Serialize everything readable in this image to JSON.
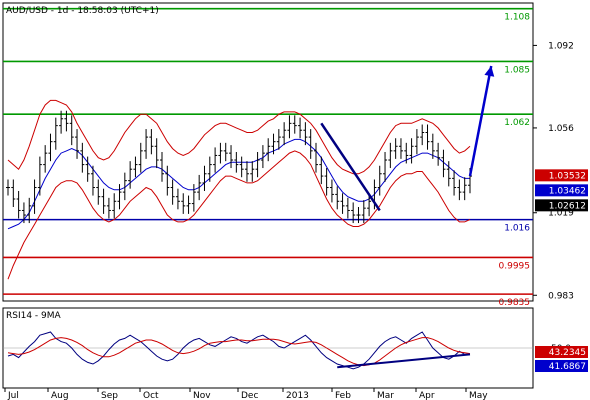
{
  "chart_data": [
    {
      "type": "line",
      "title": "AUD/USD - 1d - 18:58:03 (UTC+1)",
      "x_labels": [
        "Jul",
        "Aug",
        "Sep",
        "Oct",
        "Nov",
        "Dec",
        "2013",
        "Feb",
        "Mar",
        "Apr",
        "May"
      ],
      "y_ticks": [
        "1.092",
        "1.056",
        "1.019",
        "0.983"
      ],
      "ylim": [
        0.9805,
        1.1105
      ],
      "grid": false,
      "horizontal_levels": [
        {
          "label": "1.108",
          "value": 1.108,
          "color": "#009900"
        },
        {
          "label": "1.085",
          "value": 1.085,
          "color": "#009900"
        },
        {
          "label": "1.062",
          "value": 1.062,
          "color": "#009900"
        },
        {
          "label": "1.016",
          "value": 1.016,
          "color": "#0000aa"
        },
        {
          "label": "0.9995",
          "value": 0.9995,
          "color": "#cc0000"
        },
        {
          "label": "0.9835",
          "value": 0.9835,
          "color": "#cc0000"
        }
      ],
      "price_badges": [
        {
          "label": "1.03532",
          "value": 1.03532,
          "color": "#cc0000"
        },
        {
          "label": "1.03462",
          "value": 1.03462,
          "color": "#0000cc"
        },
        {
          "label": "1.02612",
          "value": 1.02612,
          "color": "#000000"
        }
      ],
      "close_series": {
        "name": "AUD/USD",
        "color": "#000000",
        "values": [
          1.03,
          1.025,
          1.02,
          1.018,
          1.022,
          1.03,
          1.04,
          1.045,
          1.05,
          1.057,
          1.06,
          1.058,
          1.052,
          1.046,
          1.04,
          1.036,
          1.03,
          1.026,
          1.022,
          1.02,
          1.024,
          1.028,
          1.033,
          1.038,
          1.04,
          1.046,
          1.052,
          1.048,
          1.042,
          1.036,
          1.03,
          1.026,
          1.024,
          1.022,
          1.023,
          1.028,
          1.032,
          1.036,
          1.04,
          1.044,
          1.046,
          1.045,
          1.042,
          1.04,
          1.038,
          1.036,
          1.038,
          1.042,
          1.045,
          1.048,
          1.05,
          1.052,
          1.055,
          1.058,
          1.057,
          1.055,
          1.052,
          1.046,
          1.04,
          1.035,
          1.03,
          1.027,
          1.024,
          1.022,
          1.02,
          1.018,
          1.018,
          1.021,
          1.024,
          1.03,
          1.036,
          1.042,
          1.046,
          1.048,
          1.046,
          1.044,
          1.048,
          1.052,
          1.054,
          1.05,
          1.046,
          1.043,
          1.038,
          1.034,
          1.03,
          1.028,
          1.031,
          1.035
        ]
      },
      "bollinger": {
        "color": "#cc0000",
        "upper": [
          1.042,
          1.04,
          1.038,
          1.042,
          1.048,
          1.055,
          1.062,
          1.066,
          1.068,
          1.068,
          1.067,
          1.066,
          1.063,
          1.058,
          1.054,
          1.05,
          1.046,
          1.043,
          1.042,
          1.043,
          1.046,
          1.05,
          1.054,
          1.057,
          1.06,
          1.062,
          1.062,
          1.06,
          1.058,
          1.054,
          1.05,
          1.047,
          1.045,
          1.044,
          1.045,
          1.047,
          1.05,
          1.053,
          1.055,
          1.057,
          1.058,
          1.058,
          1.057,
          1.056,
          1.055,
          1.054,
          1.054,
          1.055,
          1.057,
          1.059,
          1.06,
          1.062,
          1.063,
          1.063,
          1.063,
          1.062,
          1.06,
          1.058,
          1.055,
          1.051,
          1.047,
          1.043,
          1.04,
          1.038,
          1.037,
          1.036,
          1.036,
          1.037,
          1.039,
          1.042,
          1.046,
          1.05,
          1.054,
          1.057,
          1.058,
          1.058,
          1.058,
          1.059,
          1.06,
          1.059,
          1.058,
          1.056,
          1.053,
          1.05,
          1.047,
          1.045,
          1.046,
          1.048
        ],
        "lower": [
          0.99,
          0.996,
          1.001,
          1.006,
          1.01,
          1.014,
          1.018,
          1.022,
          1.026,
          1.03,
          1.032,
          1.033,
          1.033,
          1.032,
          1.029,
          1.025,
          1.021,
          1.018,
          1.016,
          1.015,
          1.016,
          1.018,
          1.021,
          1.024,
          1.026,
          1.028,
          1.03,
          1.029,
          1.026,
          1.022,
          1.018,
          1.016,
          1.015,
          1.015,
          1.016,
          1.018,
          1.021,
          1.024,
          1.027,
          1.03,
          1.033,
          1.035,
          1.035,
          1.034,
          1.033,
          1.032,
          1.032,
          1.033,
          1.035,
          1.037,
          1.039,
          1.041,
          1.043,
          1.045,
          1.046,
          1.045,
          1.043,
          1.04,
          1.035,
          1.03,
          1.025,
          1.021,
          1.018,
          1.016,
          1.014,
          1.013,
          1.013,
          1.014,
          1.016,
          1.019,
          1.022,
          1.026,
          1.03,
          1.033,
          1.035,
          1.036,
          1.036,
          1.037,
          1.037,
          1.034,
          1.031,
          1.028,
          1.024,
          1.02,
          1.017,
          1.015,
          1.015,
          1.016
        ]
      },
      "moving_average": {
        "color": "#0000cc",
        "values": [
          1.012,
          1.013,
          1.014,
          1.016,
          1.019,
          1.024,
          1.029,
          1.034,
          1.038,
          1.042,
          1.045,
          1.046,
          1.047,
          1.046,
          1.044,
          1.041,
          1.038,
          1.035,
          1.032,
          1.03,
          1.029,
          1.029,
          1.03,
          1.032,
          1.034,
          1.036,
          1.038,
          1.039,
          1.039,
          1.038,
          1.036,
          1.034,
          1.032,
          1.03,
          1.029,
          1.029,
          1.03,
          1.032,
          1.034,
          1.036,
          1.038,
          1.04,
          1.041,
          1.041,
          1.041,
          1.041,
          1.041,
          1.042,
          1.043,
          1.045,
          1.046,
          1.047,
          1.049,
          1.05,
          1.051,
          1.051,
          1.05,
          1.048,
          1.046,
          1.043,
          1.039,
          1.035,
          1.031,
          1.028,
          1.026,
          1.025,
          1.024,
          1.024,
          1.025,
          1.027,
          1.03,
          1.033,
          1.036,
          1.039,
          1.041,
          1.042,
          1.043,
          1.044,
          1.045,
          1.045,
          1.044,
          1.043,
          1.041,
          1.039,
          1.037,
          1.035,
          1.034,
          1.034
        ]
      },
      "trendlines": [
        {
          "color": "#000080",
          "points": [
            [
              59,
              1.058
            ],
            [
              70,
              1.02
            ]
          ]
        },
        {
          "color": "#0000cc",
          "points": [
            [
              87,
              1.035
            ],
            [
              91,
              1.083
            ]
          ]
        }
      ]
    },
    {
      "type": "line",
      "title": "RSI14 - 9MA",
      "ticks": [
        "50.0"
      ],
      "ylim": [
        0,
        100
      ],
      "badges": [
        {
          "label": "43.2345",
          "value": 43.2345,
          "color": "#cc0000"
        },
        {
          "label": "41.6867",
          "value": 41.6867,
          "color": "#0000cc"
        }
      ],
      "series": [
        {
          "name": "RSI14",
          "color": "#000080",
          "values": [
            40,
            42,
            38,
            45,
            52,
            58,
            66,
            68,
            70,
            62,
            58,
            56,
            50,
            42,
            36,
            32,
            30,
            34,
            40,
            48,
            55,
            60,
            62,
            66,
            62,
            58,
            52,
            46,
            40,
            36,
            34,
            36,
            42,
            50,
            56,
            60,
            62,
            58,
            54,
            52,
            56,
            60,
            64,
            62,
            58,
            56,
            60,
            64,
            66,
            62,
            58,
            52,
            50,
            54,
            58,
            62,
            66,
            60,
            52,
            44,
            38,
            34,
            30,
            28,
            26,
            24,
            26,
            30,
            36,
            44,
            52,
            58,
            62,
            64,
            60,
            56,
            62,
            66,
            70,
            60,
            50,
            44,
            38,
            36,
            40,
            46,
            42,
            42
          ]
        },
        {
          "name": "9MA",
          "color": "#cc0000",
          "values": [
            44,
            43,
            42,
            43,
            45,
            48,
            52,
            56,
            60,
            62,
            63,
            62,
            60,
            57,
            53,
            48,
            44,
            41,
            39,
            39,
            41,
            44,
            48,
            52,
            56,
            58,
            60,
            60,
            58,
            55,
            51,
            47,
            44,
            43,
            44,
            46,
            49,
            53,
            56,
            57,
            58,
            58,
            59,
            60,
            60,
            59,
            59,
            60,
            61,
            61,
            61,
            60,
            58,
            56,
            55,
            56,
            57,
            58,
            57,
            54,
            50,
            46,
            42,
            38,
            34,
            31,
            29,
            28,
            29,
            31,
            35,
            40,
            45,
            50,
            54,
            57,
            59,
            61,
            63,
            63,
            61,
            58,
            54,
            50,
            47,
            45,
            44,
            43
          ]
        }
      ],
      "trendline": {
        "color": "#000080",
        "points": [
          [
            62,
            26
          ],
          [
            87,
            42
          ]
        ]
      }
    }
  ]
}
